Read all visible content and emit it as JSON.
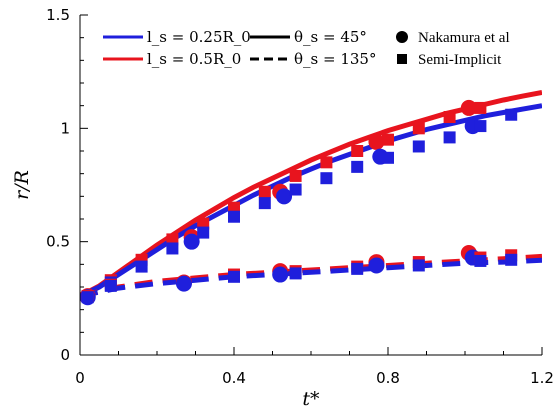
{
  "chart_data": {
    "type": "line",
    "xlabel": "t*",
    "ylabel": "r/R",
    "xlim": [
      0,
      1.2
    ],
    "ylim": [
      0,
      1.5
    ],
    "xticks": [
      0,
      0.4,
      0.8,
      1.2
    ],
    "yticks": [
      0,
      0.5,
      1,
      1.5
    ],
    "xtick_labels": [
      "0",
      "0.4",
      "0.8",
      "1.2"
    ],
    "ytick_labels": [
      "0",
      "0.5",
      "1",
      "1.5"
    ],
    "grid": false,
    "legend": {
      "placement": "top",
      "color_entries": [
        {
          "label": "l_s = 0.25R_0",
          "color": "#1f1fdc"
        },
        {
          "label": "l_s = 0.5R_0",
          "color": "#e8141e"
        }
      ],
      "style_entries": [
        {
          "label": "θ_s = 45°",
          "dash": "solid"
        },
        {
          "label": "θ_s = 135°",
          "dash": "dashed"
        }
      ],
      "marker_entries": [
        {
          "label": "Nakamura et al",
          "marker": "circle"
        },
        {
          "label": "Semi-Implicit",
          "marker": "square"
        }
      ]
    },
    "series": [
      {
        "color": "#e8141e",
        "dash": "solid",
        "x": [
          0,
          0.05,
          0.1,
          0.15,
          0.2,
          0.25,
          0.3,
          0.35,
          0.4,
          0.45,
          0.5,
          0.55,
          0.6,
          0.65,
          0.7,
          0.75,
          0.8,
          0.85,
          0.9,
          0.95,
          1.0,
          1.05,
          1.1,
          1.15,
          1.2
        ],
        "y": [
          0.26,
          0.305,
          0.365,
          0.425,
          0.485,
          0.54,
          0.595,
          0.645,
          0.695,
          0.74,
          0.78,
          0.82,
          0.86,
          0.895,
          0.93,
          0.96,
          0.99,
          1.015,
          1.04,
          1.065,
          1.085,
          1.105,
          1.125,
          1.142,
          1.158
        ]
      },
      {
        "color": "#1f1fdc",
        "dash": "solid",
        "x": [
          0,
          0.05,
          0.1,
          0.15,
          0.2,
          0.25,
          0.3,
          0.35,
          0.4,
          0.45,
          0.5,
          0.55,
          0.6,
          0.65,
          0.7,
          0.75,
          0.8,
          0.85,
          0.9,
          0.95,
          1.0,
          1.05,
          1.1,
          1.15,
          1.2
        ],
        "y": [
          0.26,
          0.3,
          0.355,
          0.41,
          0.465,
          0.52,
          0.57,
          0.615,
          0.66,
          0.705,
          0.745,
          0.785,
          0.82,
          0.855,
          0.885,
          0.915,
          0.945,
          0.97,
          0.995,
          1.015,
          1.035,
          1.055,
          1.07,
          1.085,
          1.1
        ]
      },
      {
        "color": "#e8141e",
        "dash": "dashed",
        "x": [
          0,
          0.1,
          0.2,
          0.3,
          0.4,
          0.5,
          0.6,
          0.7,
          0.8,
          0.9,
          1.0,
          1.1,
          1.2
        ],
        "y": [
          0.26,
          0.3,
          0.325,
          0.34,
          0.355,
          0.365,
          0.375,
          0.385,
          0.395,
          0.405,
          0.415,
          0.425,
          0.435
        ]
      },
      {
        "color": "#1f1fdc",
        "dash": "dashed",
        "x": [
          0,
          0.1,
          0.2,
          0.3,
          0.4,
          0.5,
          0.6,
          0.7,
          0.8,
          0.9,
          1.0,
          1.1,
          1.2
        ],
        "y": [
          0.26,
          0.295,
          0.315,
          0.33,
          0.345,
          0.355,
          0.365,
          0.375,
          0.385,
          0.395,
          0.405,
          0.41,
          0.418
        ]
      }
    ],
    "markers": [
      {
        "marker": "circle",
        "color": "#e8141e",
        "x": [
          0.02,
          0.29,
          0.52,
          0.77,
          1.01
        ],
        "y": [
          0.26,
          0.52,
          0.72,
          0.94,
          1.09
        ]
      },
      {
        "marker": "circle",
        "color": "#1f1fdc",
        "x": [
          0.02,
          0.29,
          0.53,
          0.78,
          1.02
        ],
        "y": [
          0.255,
          0.5,
          0.7,
          0.875,
          1.01
        ]
      },
      {
        "marker": "circle",
        "color": "#e8141e",
        "x": [
          0.27,
          0.52,
          0.77,
          1.01
        ],
        "y": [
          0.32,
          0.37,
          0.41,
          0.45
        ]
      },
      {
        "marker": "circle",
        "color": "#1f1fdc",
        "x": [
          0.27,
          0.52,
          0.77,
          1.02
        ],
        "y": [
          0.315,
          0.355,
          0.395,
          0.43
        ]
      },
      {
        "marker": "square",
        "color": "#e8141e",
        "x": [
          0.02,
          0.08,
          0.16,
          0.24,
          0.32,
          0.4,
          0.48,
          0.56,
          0.64,
          0.72,
          0.8,
          0.88,
          0.96,
          1.04
        ],
        "y": [
          0.26,
          0.33,
          0.42,
          0.51,
          0.58,
          0.65,
          0.72,
          0.79,
          0.85,
          0.9,
          0.95,
          1.0,
          1.05,
          1.09
        ]
      },
      {
        "marker": "square",
        "color": "#1f1fdc",
        "x": [
          0.02,
          0.08,
          0.16,
          0.24,
          0.32,
          0.4,
          0.48,
          0.56,
          0.64,
          0.72,
          0.8,
          0.88,
          0.96,
          1.04,
          1.12
        ],
        "y": [
          0.26,
          0.32,
          0.39,
          0.47,
          0.54,
          0.61,
          0.67,
          0.73,
          0.78,
          0.83,
          0.87,
          0.92,
          0.96,
          1.01,
          1.06
        ]
      },
      {
        "marker": "square",
        "color": "#e8141e",
        "x": [
          0.02,
          0.08,
          0.4,
          0.56,
          0.72,
          0.88,
          1.04,
          1.12
        ],
        "y": [
          0.26,
          0.31,
          0.355,
          0.37,
          0.39,
          0.41,
          0.43,
          0.44
        ]
      },
      {
        "marker": "square",
        "color": "#1f1fdc",
        "x": [
          0.02,
          0.08,
          0.4,
          0.56,
          0.72,
          0.88,
          1.04,
          1.12
        ],
        "y": [
          0.255,
          0.305,
          0.345,
          0.36,
          0.38,
          0.395,
          0.415,
          0.42
        ]
      }
    ]
  }
}
